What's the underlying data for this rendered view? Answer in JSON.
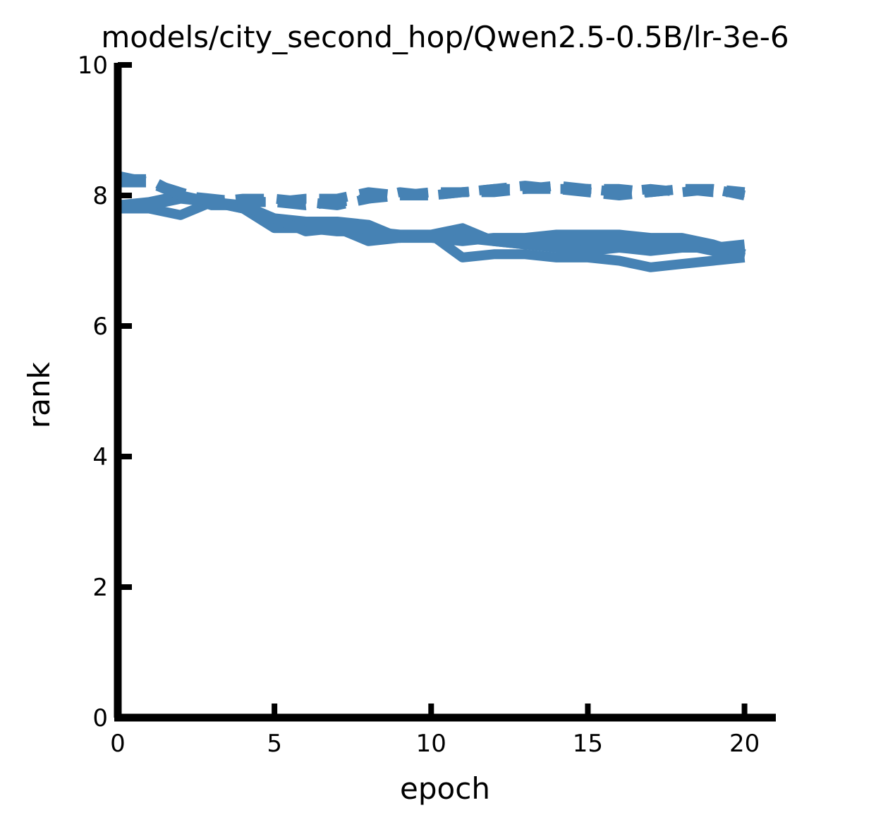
{
  "chart_data": {
    "type": "line",
    "title": "models/city_second_hop/Qwen2.5-0.5B/lr-3e-6",
    "xlabel": "epoch",
    "ylabel": "rank",
    "xlim": [
      0,
      21
    ],
    "ylim": [
      0,
      10
    ],
    "xticks": [
      "0",
      "5",
      "10",
      "15",
      "20"
    ],
    "yticks": [
      "0",
      "2",
      "4",
      "6",
      "8",
      "10"
    ],
    "xtick_values": [
      0,
      5,
      10,
      15,
      20
    ],
    "ytick_values": [
      0,
      2,
      4,
      6,
      8,
      10
    ],
    "color": "#4682b4",
    "grid": false,
    "series": [
      {
        "style": "solid",
        "x": [
          0,
          1,
          2,
          3,
          4,
          5,
          6,
          7,
          8,
          9,
          10,
          11,
          12,
          13,
          14,
          15,
          16,
          17,
          18,
          19,
          20
        ],
        "y": [
          7.8,
          7.8,
          7.7,
          7.9,
          7.8,
          7.5,
          7.5,
          7.45,
          7.45,
          7.4,
          7.4,
          7.35,
          7.3,
          7.25,
          7.3,
          7.3,
          7.25,
          7.25,
          7.25,
          7.15,
          7.05
        ]
      },
      {
        "style": "solid",
        "x": [
          0,
          1,
          2,
          3,
          4,
          5,
          6,
          7,
          8,
          9,
          10,
          11,
          12,
          13,
          14,
          15,
          16,
          17,
          18,
          19,
          20
        ],
        "y": [
          7.85,
          7.85,
          8.0,
          7.9,
          7.8,
          7.6,
          7.55,
          7.5,
          7.3,
          7.35,
          7.4,
          7.05,
          7.1,
          7.1,
          7.05,
          7.05,
          7.0,
          6.9,
          6.95,
          7.0,
          7.05
        ]
      },
      {
        "style": "solid",
        "x": [
          0,
          1,
          2,
          3,
          4,
          5,
          6,
          7,
          8,
          9,
          10,
          11,
          12,
          13,
          14,
          15,
          16,
          17,
          18,
          19,
          20
        ],
        "y": [
          7.85,
          7.9,
          8.0,
          7.85,
          7.85,
          7.65,
          7.6,
          7.6,
          7.55,
          7.35,
          7.4,
          7.5,
          7.3,
          7.25,
          7.2,
          7.15,
          7.2,
          7.15,
          7.2,
          7.2,
          7.25
        ]
      },
      {
        "style": "solid",
        "x": [
          0,
          1,
          2,
          3,
          4,
          5,
          6,
          7,
          8,
          9,
          10,
          11,
          12,
          13,
          14,
          15,
          16,
          17,
          18,
          19,
          20
        ],
        "y": [
          7.85,
          7.85,
          7.95,
          7.9,
          7.85,
          7.65,
          7.45,
          7.5,
          7.5,
          7.35,
          7.35,
          7.3,
          7.35,
          7.35,
          7.4,
          7.4,
          7.4,
          7.35,
          7.35,
          7.25,
          7.1
        ]
      },
      {
        "style": "dashed",
        "x": [
          0,
          1,
          2,
          3,
          4,
          5,
          6,
          7,
          8,
          9,
          10,
          11,
          12,
          13,
          14,
          15,
          16,
          17,
          18,
          19,
          20
        ],
        "y": [
          8.3,
          8.2,
          8.0,
          7.95,
          7.9,
          7.9,
          7.85,
          7.9,
          7.95,
          8.0,
          8.0,
          8.05,
          8.05,
          8.1,
          8.1,
          8.05,
          8.0,
          8.05,
          8.1,
          8.05,
          8.05
        ]
      },
      {
        "style": "dashed",
        "x": [
          0,
          1,
          2,
          3,
          4,
          5,
          6,
          7,
          8,
          9,
          10,
          11,
          12,
          13,
          14,
          15,
          16,
          17,
          18,
          19,
          20
        ],
        "y": [
          8.25,
          8.25,
          8.0,
          7.9,
          7.95,
          7.95,
          7.9,
          7.85,
          7.95,
          8.05,
          8.0,
          8.05,
          8.1,
          8.15,
          8.1,
          8.1,
          8.05,
          8.1,
          8.05,
          8.1,
          8.0
        ]
      },
      {
        "style": "dashed",
        "x": [
          0,
          1,
          2,
          3,
          4,
          5,
          6,
          7,
          8,
          9,
          10,
          11,
          12,
          13,
          14,
          15,
          16,
          17,
          18,
          19,
          20
        ],
        "y": [
          8.2,
          8.2,
          8.05,
          7.9,
          7.9,
          7.9,
          7.95,
          7.95,
          8.05,
          8.0,
          8.05,
          8.05,
          8.1,
          8.1,
          8.15,
          8.1,
          8.1,
          8.05,
          8.1,
          8.1,
          8.05
        ]
      }
    ]
  }
}
